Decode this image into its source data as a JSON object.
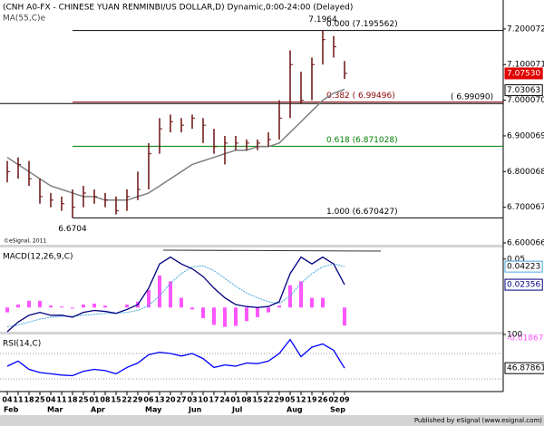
{
  "chart_data": [
    {
      "type": "hlc",
      "title": "(CNH A0-FX - CHINESE YUAN RENMINBI/US DOLLAR,D) Dynamic,0:00-24:00 (Delayed)",
      "copyright": "©eSignal, 2011",
      "color": "#6b1010",
      "high": [
        6.83,
        6.84,
        6.83,
        6.78,
        6.74,
        6.73,
        6.75,
        6.76,
        6.75,
        6.74,
        6.73,
        6.75,
        6.8,
        6.88,
        6.95,
        6.96,
        6.95,
        6.96,
        6.95,
        6.92,
        6.9,
        6.9,
        6.89,
        6.89,
        6.91,
        7.0,
        7.14,
        7.08,
        7.12,
        7.1964,
        7.18,
        7.11
      ],
      "low": [
        6.77,
        6.78,
        6.76,
        6.71,
        6.7,
        6.69,
        6.6704,
        6.7,
        6.71,
        6.7,
        6.68,
        6.69,
        6.72,
        6.75,
        6.85,
        6.91,
        6.91,
        6.92,
        6.88,
        6.85,
        6.82,
        6.86,
        6.86,
        6.86,
        6.87,
        6.89,
        6.95,
        6.99,
        7.0,
        7.1,
        7.12,
        7.06
      ],
      "close": [
        6.8,
        6.82,
        6.78,
        6.73,
        6.72,
        6.71,
        6.7,
        6.74,
        6.73,
        6.72,
        6.69,
        6.73,
        6.75,
        6.85,
        6.92,
        6.94,
        6.93,
        6.95,
        6.93,
        6.87,
        6.88,
        6.88,
        6.88,
        6.88,
        6.89,
        6.95,
        7.1,
        7.0,
        7.1,
        7.17,
        7.15,
        7.0753
      ],
      "last_label": "7.07530",
      "ma": {
        "label": "MA(55,C)e",
        "color": "#808080",
        "values": [
          6.84,
          6.82,
          6.8,
          6.78,
          6.76,
          6.75,
          6.74,
          6.73,
          6.73,
          6.72,
          6.72,
          6.72,
          6.73,
          6.74,
          6.76,
          6.78,
          6.8,
          6.82,
          6.83,
          6.84,
          6.85,
          6.86,
          6.86,
          6.87,
          6.87,
          6.88,
          6.91,
          6.94,
          6.97,
          7.0,
          7.02,
          7.03063
        ]
      },
      "annotations": [
        {
          "label": "7.1964",
          "value": 7.1964
        },
        {
          "label": "6.6704",
          "value": 6.6704
        }
      ],
      "fib_levels": [
        {
          "label": "0.000 (7.195562)",
          "value": 7.195562,
          "color": "#000000"
        },
        {
          "label": "0.382 ( 6.99496)",
          "value": 6.99496,
          "color": "#8b0000"
        },
        {
          "label": "0.618 (6.871028)",
          "value": 6.871028,
          "color": "#008000"
        },
        {
          "label": "1.000 (6.670427)",
          "value": 6.670427,
          "color": "#000000"
        }
      ],
      "support": {
        "label": "( 6.99090)",
        "value": 6.9909
      },
      "ylim": [
        6.595,
        7.276
      ],
      "yticks": [
        {
          "value": 7.200072,
          "label": "7.200072"
        },
        {
          "value": 7.100071,
          "label": "7.100071"
        },
        {
          "value": 7.00007,
          "label": "7.000070"
        },
        {
          "value": 6.900069,
          "label": "6.900069"
        },
        {
          "value": 6.800068,
          "label": "6.800068"
        },
        {
          "value": 6.700067,
          "label": "6.700067"
        },
        {
          "value": 6.600066,
          "label": "6.600066"
        }
      ]
    },
    {
      "type": "macd",
      "label": "MACD(12,26,9,C)",
      "ylim": [
        -0.025,
        0.062
      ],
      "yticks": [
        0.05
      ],
      "macd": {
        "color": "#000080",
        "values": [
          -0.025,
          -0.015,
          -0.008,
          -0.005,
          -0.008,
          -0.008,
          -0.01,
          -0.005,
          -0.003,
          -0.004,
          -0.006,
          -0.002,
          0.003,
          0.02,
          0.045,
          0.052,
          0.045,
          0.04,
          0.032,
          0.02,
          0.01,
          0.003,
          0.001,
          0.0,
          0.001,
          0.006,
          0.035,
          0.052,
          0.045,
          0.052,
          0.045,
          0.02356
        ]
      },
      "signal": {
        "color": "#4aa8e0",
        "values": [
          -0.02,
          -0.018,
          -0.015,
          -0.012,
          -0.01,
          -0.009,
          -0.009,
          -0.008,
          -0.007,
          -0.006,
          -0.006,
          -0.005,
          -0.003,
          0.002,
          0.012,
          0.025,
          0.035,
          0.042,
          0.043,
          0.038,
          0.03,
          0.022,
          0.015,
          0.01,
          0.006,
          0.004,
          0.012,
          0.025,
          0.035,
          0.042,
          0.045,
          0.04223
        ]
      },
      "histogram": {
        "color": "#ff55ff",
        "values": [
          -0.005,
          0.003,
          0.007,
          0.007,
          0.002,
          0.001,
          -0.001,
          0.003,
          0.004,
          0.002,
          0,
          0.003,
          0.006,
          0.018,
          0.033,
          0.027,
          0.01,
          -0.002,
          -0.011,
          -0.018,
          -0.02,
          -0.019,
          -0.014,
          -0.01,
          -0.005,
          0.002,
          0.023,
          0.027,
          0.01,
          0.01,
          0,
          -0.01867
        ]
      }
    },
    {
      "type": "rsi",
      "label": "RSI(14,C)",
      "color": "#0000ff",
      "ylim": [
        10,
        100
      ],
      "yticks": [
        100
      ],
      "levels": [
        70,
        30
      ],
      "values": [
        50,
        58,
        45,
        40,
        38,
        36,
        35,
        42,
        45,
        43,
        38,
        48,
        55,
        68,
        72,
        70,
        66,
        70,
        62,
        48,
        52,
        50,
        55,
        54,
        58,
        70,
        92,
        65,
        80,
        85,
        75,
        46.87861
      ]
    }
  ],
  "x_axis": {
    "categories": [
      "04",
      "11",
      "18",
      "25",
      "04",
      "11",
      "18",
      "25",
      "01",
      "08",
      "15",
      "22",
      "29",
      "06",
      "13",
      "20",
      "27",
      "03",
      "10",
      "17",
      "24",
      "01",
      "08",
      "15",
      "22",
      "29",
      "05",
      "12",
      "19",
      "26",
      "02",
      "09"
    ],
    "months": [
      "Feb",
      "Mar",
      "Apr",
      "May",
      "Jun",
      "Jul",
      "Aug",
      "Sep"
    ]
  },
  "footer": "Published by eSignal (www.esignal.com)"
}
